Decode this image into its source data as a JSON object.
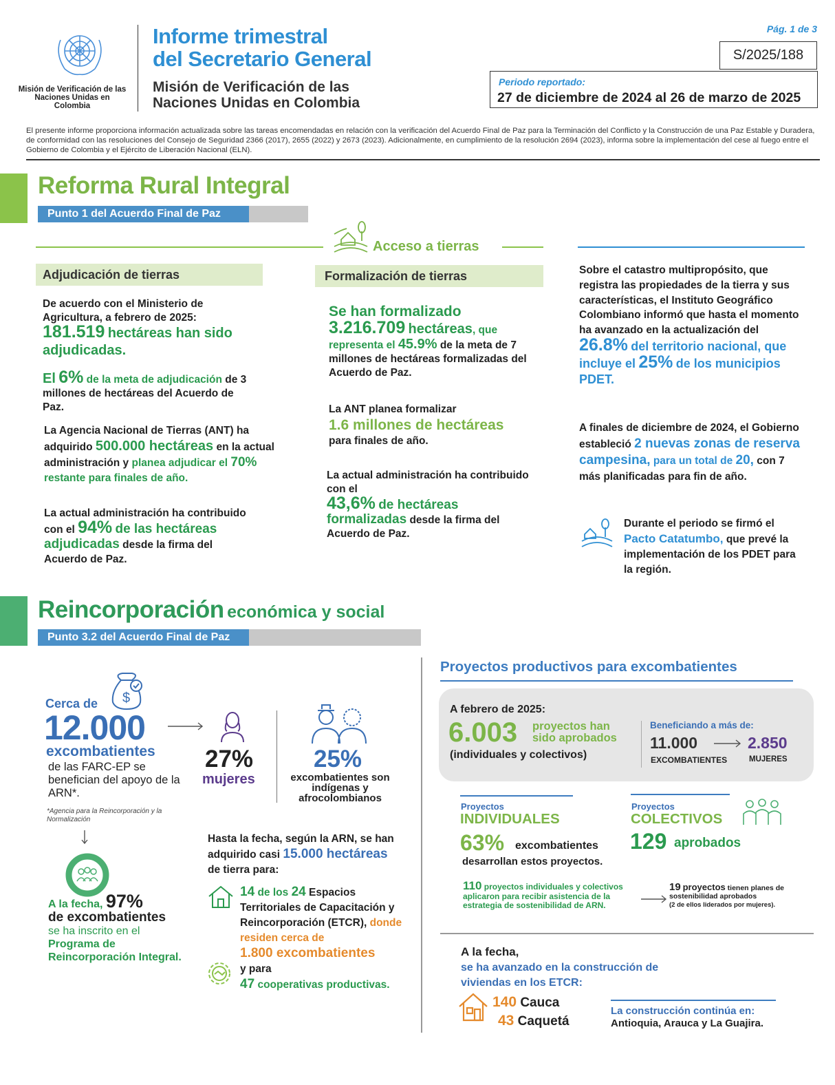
{
  "header": {
    "logo_caption": "Misión de Verificación de las Naciones Unidas en Colombia",
    "title": [
      "Informe trimestral",
      "del Secretario General"
    ],
    "subtitle": [
      "Misión de Verificación de las",
      "Naciones Unidas en Colombia"
    ],
    "page": "Pág. 1 de 3",
    "document_code": "S/2025/188",
    "period_label": "Periodo reportado:",
    "period": "27 de diciembre de 2024 al 26 de marzo de 2025"
  },
  "intro": "El presente informe proporciona información actualizada sobre las tareas encomendadas en relación con la verificación del Acuerdo Final de Paz para la Terminación del Conflicto y la Construcción de una Paz Estable y Duradera, de conformidad con las resoluciones del Consejo de Seguridad 2366 (2017), 2655 (2022) y 2673 (2023). Adicionalmente, en cumplimiento de la resolución 2694 (2023), informa sobre la implementación del cese al fuego entre el Gobierno de Colombia y el Ejército de Liberación Nacional (ELN).",
  "reforma": {
    "title": "Reforma Rural Integral",
    "point": "Punto 1 del Acuerdo Final de Paz",
    "topic": "Acceso a tierras",
    "adjudicacion": {
      "heading": "Adjudicación de tierras",
      "p1": [
        "De acuerdo con el Ministerio de Agricultura, a febrero de 2025:",
        "181.519",
        "hectáreas han sido adjudicadas."
      ],
      "p2": [
        "El",
        "6%",
        "de la meta de adjudicación",
        "de 3 millones de hectáreas del Acuerdo de Paz."
      ],
      "p3": [
        "La Agencia Nacional de Tierras (ANT) ha adquirido",
        "500.000 hectáreas",
        "en la actual administración y",
        "planea adjudicar el",
        "70%",
        "restante para finales de año."
      ],
      "p4": [
        "La actual administración ha contribuido con el",
        "94%",
        "de las hectáreas adjudicadas",
        "desde la firma del Acuerdo de Paz."
      ]
    },
    "formalizacion": {
      "heading": "Formalización de tierras",
      "p1": [
        "Se han formalizado",
        "3.216.709",
        "hectáreas",
        ", que representa el",
        "45.9%",
        "de la meta de 7 millones de hectáreas formalizadas del Acuerdo de Paz."
      ],
      "p2": [
        "La ANT planea formalizar",
        "1.6 millones de hectáreas",
        "para finales de año."
      ],
      "p3": [
        "La actual administración ha contribuido con el",
        "43,6%",
        "de hectáreas formalizadas",
        "desde la firma del Acuerdo de Paz."
      ]
    },
    "catastro": {
      "p1": [
        "Sobre el catastro multipropósito, que registra las propiedades de la tierra y sus características, el Instituto Geográfico Colombiano informó que hasta el momento ha avanzado en la actualización del",
        "26.8%",
        "del territorio nacional, que incluye el",
        "25%",
        "de los municipios PDET."
      ],
      "p2": [
        "A finales de diciembre de 2024, el Gobierno estableció",
        "2 nuevas zonas de reserva campesina,",
        "para un total de",
        "20,",
        "con 7 más planificadas para fin de año."
      ],
      "p3": [
        "Durante el periodo se firmó el",
        "Pacto Catatumbo,",
        "que prevé la implementación de los PDET para la región."
      ]
    }
  },
  "reincorporacion": {
    "title": "Reincorporación",
    "title_suffix": "económica y social",
    "point": "Punto 3.2 del Acuerdo Final de Paz",
    "beneficiaries": {
      "prefix": "Cerca de",
      "value": "12.000",
      "unit": "excombatientes",
      "text": "de las FARC-EP se benefician del apoyo de la ARN*.",
      "footnote": "*Agencia para la Reincorporación y la Normalización"
    },
    "women": {
      "value": "27%",
      "label": "mujeres"
    },
    "ethnic": {
      "value": "25%",
      "label": "excombatientes son indígenas y afrocolombianos"
    },
    "registered": [
      "A la fecha,",
      "97%",
      "de excombatientes",
      "se ha inscrito en el",
      "Programa de Reincorporación Integral."
    ],
    "land": [
      "Hasta la fecha, según la ARN, se han adquirido casi",
      "15.000 hectáreas",
      "de tierra para:"
    ],
    "etcr": [
      "14",
      "de los",
      "24",
      "Espacios Territoriales de Capacitación y Reincorporación (ETCR),",
      "donde residen cerca de",
      "1.800 excombatientes",
      "y para",
      "47",
      "cooperativas productivas."
    ],
    "projects": {
      "title": "Proyectos productivos para excombatientes",
      "date": "A febrero de 2025:",
      "approved_value": "6.003",
      "approved_text": "proyectos han sido aprobados",
      "approved_note": "(individuales y colectivos)",
      "benefit_label": "Beneficiando a más de:",
      "benefit_total": "11.000",
      "benefit_total_label": "EXCOMBATIENTES",
      "benefit_women": "2.850",
      "benefit_women_label": "MUJERES",
      "individual": {
        "label": "Proyectos",
        "name": "INDIVIDUALES",
        "value": "63%",
        "text": "excombatientes",
        "text2": "desarrollan estos proyectos."
      },
      "collective": {
        "label": "Proyectos",
        "name": "COLECTIVOS",
        "value": "129",
        "text": "aprobados"
      },
      "sustainability": [
        "110",
        "proyectos individuales y colectivos aplicaron para recibir asistencia de la estrategia de sostenibilidad de ARN."
      ],
      "plans": [
        "19",
        "proyectos",
        "tienen planes de sostenibilidad aprobados",
        "(2 de ellos liderados por mujeres)."
      ]
    },
    "housing": {
      "intro": [
        "A la fecha,",
        "se ha avanzado en la construcción de viviendas en los ETCR:"
      ],
      "items": [
        {
          "value": "140",
          "place": "Cauca"
        },
        {
          "value": "43",
          "place": "Caquetá"
        }
      ],
      "continues_label": "La construcción continúa en:",
      "continues": "Antioquia, Arauca y La Guajira."
    }
  }
}
